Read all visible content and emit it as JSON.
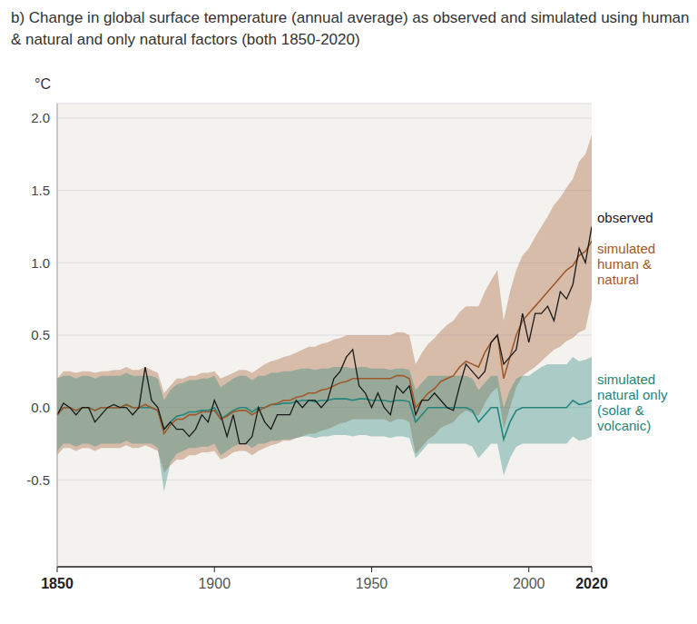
{
  "chart_data": {
    "type": "line",
    "title": "b) Change in global surface temperature (annual average) as observed and simulated using human & natural and only natural factors (both 1850-2020)",
    "y_label": "°C",
    "x": [
      1850,
      1852,
      1854,
      1856,
      1858,
      1860,
      1862,
      1864,
      1866,
      1868,
      1870,
      1872,
      1874,
      1876,
      1878,
      1880,
      1882,
      1884,
      1886,
      1888,
      1890,
      1892,
      1894,
      1896,
      1898,
      1900,
      1902,
      1904,
      1906,
      1908,
      1910,
      1912,
      1914,
      1916,
      1918,
      1920,
      1922,
      1924,
      1926,
      1928,
      1930,
      1932,
      1934,
      1936,
      1938,
      1940,
      1942,
      1944,
      1946,
      1948,
      1950,
      1952,
      1954,
      1956,
      1958,
      1960,
      1962,
      1964,
      1966,
      1968,
      1970,
      1972,
      1974,
      1976,
      1978,
      1980,
      1982,
      1984,
      1986,
      1988,
      1990,
      1992,
      1994,
      1996,
      1998,
      2000,
      2002,
      2004,
      2006,
      2008,
      2010,
      2012,
      2014,
      2016,
      2018,
      2020
    ],
    "xlim": [
      1850,
      2020
    ],
    "xticks": [
      1850,
      1900,
      1950,
      2000,
      2020
    ],
    "ylim": [
      -1.1,
      2.1
    ],
    "yticks": [
      {
        "value": 2,
        "label": "2.0"
      },
      1.5,
      {
        "value": 1,
        "label": "1.0"
      },
      0.5,
      {
        "value": 0,
        "label": "0.0"
      },
      -0.5
    ],
    "grid": true,
    "series": [
      {
        "name": "observed",
        "color": "#1a1a1a",
        "values": [
          -0.05,
          0.03,
          0.0,
          -0.05,
          0.0,
          0.0,
          -0.1,
          -0.05,
          0.0,
          0.02,
          0.0,
          0.0,
          -0.05,
          0.0,
          0.28,
          0.05,
          0.0,
          -0.15,
          -0.1,
          -0.15,
          -0.15,
          -0.2,
          -0.15,
          -0.05,
          -0.1,
          0.05,
          -0.05,
          -0.2,
          -0.05,
          -0.25,
          -0.25,
          -0.2,
          0.0,
          -0.1,
          -0.15,
          -0.05,
          -0.05,
          -0.05,
          0.05,
          0.0,
          0.05,
          0.05,
          0.0,
          0.05,
          0.2,
          0.25,
          0.35,
          0.4,
          0.15,
          0.1,
          0.0,
          0.1,
          0.0,
          -0.05,
          0.15,
          0.1,
          0.15,
          -0.05,
          0.05,
          0.05,
          0.1,
          0.05,
          0.0,
          -0.02,
          0.15,
          0.3,
          0.25,
          0.2,
          0.25,
          0.45,
          0.5,
          0.3,
          0.35,
          0.4,
          0.65,
          0.45,
          0.65,
          0.65,
          0.7,
          0.6,
          0.8,
          0.75,
          0.85,
          1.1,
          1.0,
          1.25
        ]
      },
      {
        "name": "simulated human & natural",
        "color": "#a0592a",
        "values": [
          -0.05,
          0.0,
          0.0,
          -0.02,
          0.0,
          0.0,
          -0.02,
          0.0,
          0.0,
          0.0,
          0.0,
          0.02,
          0.0,
          0.0,
          0.02,
          0.0,
          -0.02,
          -0.18,
          -0.12,
          -0.08,
          -0.08,
          -0.05,
          -0.05,
          -0.03,
          -0.03,
          -0.02,
          -0.08,
          -0.06,
          -0.03,
          -0.02,
          -0.02,
          -0.05,
          -0.02,
          0.0,
          0.02,
          0.03,
          0.05,
          0.05,
          0.07,
          0.08,
          0.1,
          0.1,
          0.12,
          0.13,
          0.15,
          0.17,
          0.18,
          0.2,
          0.2,
          0.2,
          0.2,
          0.2,
          0.2,
          0.2,
          0.22,
          0.22,
          0.2,
          0.0,
          0.05,
          0.1,
          0.13,
          0.18,
          0.2,
          0.22,
          0.28,
          0.32,
          0.3,
          0.28,
          0.38,
          0.45,
          0.5,
          0.2,
          0.35,
          0.5,
          0.6,
          0.65,
          0.7,
          0.75,
          0.8,
          0.85,
          0.9,
          0.95,
          0.98,
          1.05,
          1.08,
          1.15
        ],
        "low": [
          -0.33,
          -0.28,
          -0.28,
          -0.3,
          -0.28,
          -0.28,
          -0.3,
          -0.28,
          -0.28,
          -0.28,
          -0.28,
          -0.26,
          -0.28,
          -0.28,
          -0.26,
          -0.28,
          -0.3,
          -0.45,
          -0.4,
          -0.36,
          -0.36,
          -0.33,
          -0.33,
          -0.31,
          -0.31,
          -0.3,
          -0.36,
          -0.34,
          -0.31,
          -0.3,
          -0.3,
          -0.33,
          -0.3,
          -0.28,
          -0.26,
          -0.25,
          -0.23,
          -0.23,
          -0.21,
          -0.2,
          -0.18,
          -0.18,
          -0.16,
          -0.15,
          -0.13,
          -0.11,
          -0.1,
          -0.08,
          -0.08,
          -0.08,
          -0.08,
          -0.08,
          -0.08,
          -0.1,
          -0.08,
          -0.08,
          -0.1,
          -0.32,
          -0.27,
          -0.22,
          -0.19,
          -0.14,
          -0.12,
          -0.1,
          -0.05,
          -0.02,
          -0.04,
          -0.06,
          0.03,
          0.1,
          0.14,
          -0.15,
          0.0,
          0.14,
          0.22,
          0.25,
          0.28,
          0.32,
          0.36,
          0.4,
          0.42,
          0.46,
          0.48,
          0.52,
          0.54,
          0.75
        ],
        "high": [
          0.2,
          0.25,
          0.25,
          0.24,
          0.25,
          0.25,
          0.24,
          0.25,
          0.25,
          0.26,
          0.26,
          0.28,
          0.26,
          0.26,
          0.28,
          0.26,
          0.24,
          0.1,
          0.15,
          0.2,
          0.2,
          0.22,
          0.22,
          0.24,
          0.24,
          0.25,
          0.2,
          0.22,
          0.24,
          0.26,
          0.26,
          0.24,
          0.27,
          0.3,
          0.32,
          0.33,
          0.35,
          0.36,
          0.38,
          0.4,
          0.42,
          0.42,
          0.44,
          0.45,
          0.47,
          0.48,
          0.5,
          0.5,
          0.5,
          0.5,
          0.5,
          0.5,
          0.5,
          0.5,
          0.52,
          0.52,
          0.5,
          0.3,
          0.38,
          0.44,
          0.48,
          0.53,
          0.57,
          0.6,
          0.66,
          0.7,
          0.7,
          0.7,
          0.8,
          0.88,
          0.95,
          0.6,
          0.8,
          0.95,
          1.05,
          1.1,
          1.18,
          1.25,
          1.32,
          1.4,
          1.45,
          1.52,
          1.58,
          1.7,
          1.75,
          1.88
        ]
      },
      {
        "name": "simulated natural only (solar & volcanic)",
        "color": "#23867c",
        "values": [
          -0.05,
          0.0,
          0.0,
          -0.02,
          0.0,
          0.0,
          -0.02,
          0.0,
          0.0,
          0.0,
          0.0,
          0.02,
          0.0,
          0.0,
          0.0,
          0.0,
          -0.02,
          -0.15,
          -0.1,
          -0.06,
          -0.05,
          -0.03,
          -0.03,
          -0.02,
          -0.02,
          0.0,
          -0.08,
          -0.05,
          -0.02,
          0.0,
          0.0,
          -0.03,
          0.0,
          0.0,
          0.02,
          0.02,
          0.03,
          0.03,
          0.04,
          0.05,
          0.05,
          0.04,
          0.05,
          0.05,
          0.06,
          0.06,
          0.06,
          0.05,
          0.06,
          0.06,
          0.05,
          0.05,
          0.05,
          0.04,
          0.05,
          0.05,
          0.04,
          -0.1,
          -0.05,
          0.0,
          0.0,
          0.0,
          0.0,
          0.0,
          0.0,
          0.0,
          -0.02,
          -0.1,
          -0.05,
          0.0,
          0.0,
          -0.22,
          -0.1,
          -0.02,
          0.0,
          0.0,
          0.0,
          0.0,
          0.0,
          0.0,
          0.0,
          0.0,
          0.05,
          0.02,
          0.03,
          0.05
        ],
        "low": [
          -0.3,
          -0.25,
          -0.25,
          -0.27,
          -0.25,
          -0.25,
          -0.27,
          -0.25,
          -0.25,
          -0.25,
          -0.25,
          -0.23,
          -0.25,
          -0.25,
          -0.25,
          -0.25,
          -0.28,
          -0.58,
          -0.38,
          -0.32,
          -0.3,
          -0.28,
          -0.28,
          -0.27,
          -0.27,
          -0.25,
          -0.33,
          -0.3,
          -0.27,
          -0.25,
          -0.25,
          -0.28,
          -0.25,
          -0.25,
          -0.23,
          -0.23,
          -0.22,
          -0.22,
          -0.21,
          -0.2,
          -0.2,
          -0.21,
          -0.2,
          -0.2,
          -0.19,
          -0.19,
          -0.19,
          -0.2,
          -0.19,
          -0.19,
          -0.2,
          -0.2,
          -0.2,
          -0.21,
          -0.2,
          -0.2,
          -0.21,
          -0.35,
          -0.3,
          -0.25,
          -0.25,
          -0.25,
          -0.25,
          -0.25,
          -0.25,
          -0.25,
          -0.27,
          -0.35,
          -0.3,
          -0.25,
          -0.25,
          -0.47,
          -0.35,
          -0.27,
          -0.25,
          -0.25,
          -0.25,
          -0.25,
          -0.25,
          -0.25,
          -0.25,
          -0.25,
          -0.2,
          -0.23,
          -0.22,
          -0.2
        ],
        "high": [
          0.2,
          0.22,
          0.22,
          0.2,
          0.22,
          0.22,
          0.2,
          0.22,
          0.22,
          0.22,
          0.22,
          0.24,
          0.22,
          0.22,
          0.22,
          0.22,
          0.2,
          0.05,
          0.12,
          0.16,
          0.17,
          0.19,
          0.19,
          0.2,
          0.2,
          0.22,
          0.14,
          0.17,
          0.2,
          0.22,
          0.22,
          0.19,
          0.22,
          0.22,
          0.24,
          0.24,
          0.25,
          0.25,
          0.26,
          0.27,
          0.27,
          0.26,
          0.27,
          0.27,
          0.28,
          0.28,
          0.28,
          0.27,
          0.28,
          0.28,
          0.27,
          0.27,
          0.27,
          0.26,
          0.27,
          0.27,
          0.26,
          0.12,
          0.17,
          0.22,
          0.22,
          0.22,
          0.22,
          0.22,
          0.22,
          0.22,
          0.2,
          0.12,
          0.17,
          0.22,
          0.22,
          0.0,
          0.12,
          0.2,
          0.22,
          0.22,
          0.25,
          0.28,
          0.3,
          0.3,
          0.3,
          0.3,
          0.35,
          0.32,
          0.33,
          0.35
        ]
      }
    ]
  }
}
